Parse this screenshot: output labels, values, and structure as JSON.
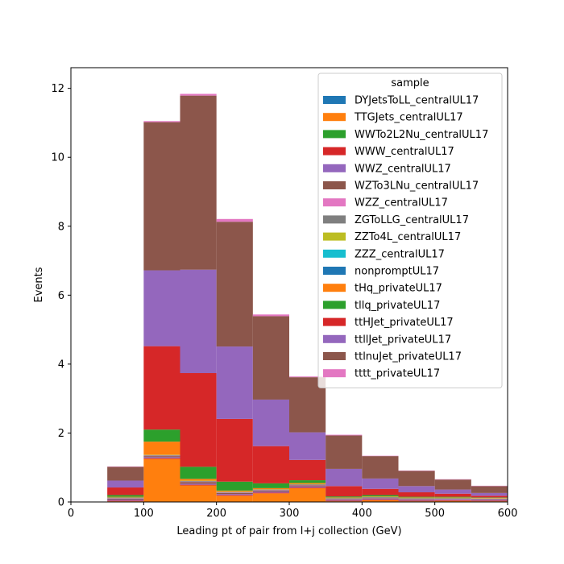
{
  "chart_data": {
    "type": "bar",
    "stacked": true,
    "histogram": true,
    "xlabel": "Leading pt of pair from l+j collection (GeV)",
    "ylabel": "Events",
    "xlim": [
      0,
      600
    ],
    "ylim": [
      0,
      12.6
    ],
    "xticks": [
      0,
      100,
      200,
      300,
      400,
      500,
      600
    ],
    "yticks": [
      0,
      2,
      4,
      6,
      8,
      10,
      12
    ],
    "bin_edges": [
      50,
      100,
      150,
      200,
      250,
      300,
      350,
      400,
      450,
      500,
      550,
      600
    ],
    "legend_title": "sample",
    "legend_position": "top-right",
    "series": [
      {
        "name": "DYJetsToLL_centralUL17",
        "color": "#1f77b4",
        "values": [
          0,
          0,
          0,
          0,
          0,
          0,
          0,
          0,
          0,
          0,
          0
        ]
      },
      {
        "name": "TTGJets_centralUL17",
        "color": "#ff7f0e",
        "values": [
          0.02,
          1.25,
          0.48,
          0.18,
          0.25,
          0.4,
          0.02,
          0.05,
          0.02,
          0.03,
          0.02
        ]
      },
      {
        "name": "WWTo2L2Nu_centralUL17",
        "color": "#2ca02c",
        "values": [
          0,
          0,
          0,
          0,
          0,
          0,
          0,
          0,
          0,
          0,
          0
        ]
      },
      {
        "name": "WWW_centralUL17",
        "color": "#d62728",
        "values": [
          0.02,
          0.02,
          0.02,
          0.02,
          0.02,
          0.02,
          0.02,
          0.02,
          0.02,
          0.02,
          0.02
        ]
      },
      {
        "name": "WWZ_centralUL17",
        "color": "#9467bd",
        "values": [
          0.03,
          0.03,
          0.03,
          0.03,
          0.03,
          0.03,
          0.02,
          0.02,
          0.02,
          0.02,
          0.02
        ]
      },
      {
        "name": "WZTo3LNu_centralUL17",
        "color": "#8c564b",
        "values": [
          0.03,
          0.03,
          0.05,
          0.03,
          0.03,
          0.03,
          0.02,
          0.02,
          0.02,
          0.01,
          0.01
        ]
      },
      {
        "name": "WZZ_centralUL17",
        "color": "#e377c2",
        "values": [
          0.01,
          0.01,
          0.01,
          0.01,
          0.01,
          0.01,
          0.01,
          0.01,
          0.01,
          0.01,
          0.01
        ]
      },
      {
        "name": "ZGToLLG_centralUL17",
        "color": "#7f7f7f",
        "values": [
          0.02,
          0.02,
          0.02,
          0.02,
          0.02,
          0.02,
          0.02,
          0.02,
          0.02,
          0.02,
          0.02
        ]
      },
      {
        "name": "ZZTo4L_centralUL17",
        "color": "#bcbd22",
        "values": [
          0.01,
          0.01,
          0.01,
          0.01,
          0.01,
          0.01,
          0.01,
          0.01,
          0.01,
          0.01,
          0.01
        ]
      },
      {
        "name": "ZZZ_centralUL17",
        "color": "#17becf",
        "values": [
          0,
          0,
          0,
          0,
          0,
          0,
          0,
          0,
          0,
          0,
          0
        ]
      },
      {
        "name": "nonpromptUL17",
        "color": "#1f77b4",
        "values": [
          0,
          0,
          0,
          0,
          0,
          0,
          0,
          0,
          0,
          0,
          0
        ]
      },
      {
        "name": "tHq_privateUL17",
        "color": "#ff7f0e",
        "values": [
          0.01,
          0.38,
          0.05,
          0.03,
          0.03,
          0.03,
          0.01,
          0.01,
          0.01,
          0.01,
          0.01
        ]
      },
      {
        "name": "tllq_privateUL17",
        "color": "#2ca02c",
        "values": [
          0.05,
          0.35,
          0.35,
          0.26,
          0.14,
          0.08,
          0.03,
          0.04,
          0.02,
          0.02,
          0.01
        ]
      },
      {
        "name": "ttHJet_privateUL17",
        "color": "#d62728",
        "values": [
          0.22,
          2.42,
          2.72,
          1.82,
          1.08,
          0.59,
          0.3,
          0.18,
          0.13,
          0.09,
          0.05
        ]
      },
      {
        "name": "ttllJet_privateUL17",
        "color": "#9467bd",
        "values": [
          0.2,
          2.2,
          3.0,
          2.1,
          1.35,
          0.8,
          0.5,
          0.3,
          0.18,
          0.12,
          0.08
        ]
      },
      {
        "name": "ttlnuJet_privateUL17",
        "color": "#8c564b",
        "values": [
          0.4,
          4.3,
          5.05,
          3.62,
          2.42,
          1.6,
          0.97,
          0.65,
          0.44,
          0.29,
          0.2
        ]
      },
      {
        "name": "tttt_privateUL17",
        "color": "#e377c2",
        "values": [
          0.01,
          0.03,
          0.05,
          0.08,
          0.05,
          0.02,
          0.02,
          0.01,
          0.01,
          0.01,
          0.01
        ]
      }
    ]
  }
}
